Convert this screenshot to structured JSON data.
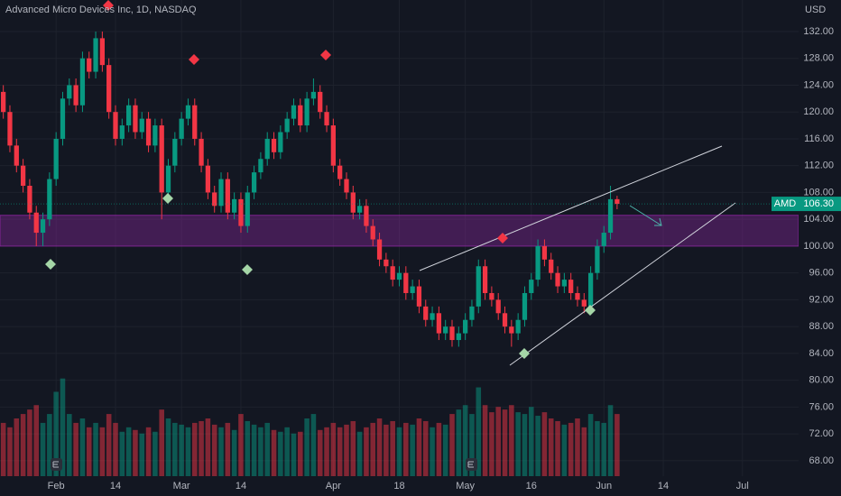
{
  "chart_data": {
    "type": "candlestick",
    "title": "Advanced Micro Devices Inc, 1D, NASDAQ",
    "currency": "USD",
    "symbol": "AMD",
    "last_price": {
      "value": 106.3,
      "label": "106.30"
    },
    "up_color": "#089981",
    "down_color": "#f23645",
    "zone": [
      100,
      104.6
    ],
    "zone_color": "#9c27b0",
    "grid": true,
    "ylim": [
      65.7,
      136.7
    ],
    "yticks": [
      {
        "value": 68,
        "label": "68.00"
      },
      {
        "value": 72,
        "label": "72.00"
      },
      {
        "value": 76,
        "label": "76.00"
      },
      {
        "value": 80,
        "label": "80.00"
      },
      {
        "value": 84,
        "label": "84.00"
      },
      {
        "value": 88,
        "label": "88.00"
      },
      {
        "value": 92,
        "label": "92.00"
      },
      {
        "value": 96,
        "label": "96.00"
      },
      {
        "value": 100,
        "label": "100.00"
      },
      {
        "value": 104,
        "label": "104.00"
      },
      {
        "value": 108,
        "label": "108.00"
      },
      {
        "value": 112,
        "label": "112.00"
      },
      {
        "value": 116,
        "label": "116.00"
      },
      {
        "value": 120,
        "label": "120.00"
      },
      {
        "value": 124,
        "label": "124.00"
      },
      {
        "value": 128,
        "label": "128.00"
      },
      {
        "value": 132,
        "label": "132.00"
      }
    ],
    "xlim": [
      -0.5,
      120.5
    ],
    "xticks": [
      {
        "value": 8,
        "label": "Feb"
      },
      {
        "value": 17,
        "label": "14"
      },
      {
        "value": 27,
        "label": "Mar"
      },
      {
        "value": 36,
        "label": "14"
      },
      {
        "value": 50,
        "label": "Apr"
      },
      {
        "value": 60,
        "label": "18"
      },
      {
        "value": 70,
        "label": "May"
      },
      {
        "value": 80,
        "label": "16"
      },
      {
        "value": 91,
        "label": "Jun"
      },
      {
        "value": 100,
        "label": "14"
      },
      {
        "value": 112,
        "label": "Jul"
      }
    ],
    "ohlc": [
      [
        123,
        124,
        119,
        120
      ],
      [
        120,
        121,
        114,
        115
      ],
      [
        115,
        116,
        111,
        112
      ],
      [
        112,
        113,
        108,
        109
      ],
      [
        109,
        110,
        104,
        105
      ],
      [
        105,
        106,
        100,
        102
      ],
      [
        102,
        105,
        100,
        104
      ],
      [
        104,
        111,
        103,
        110
      ],
      [
        110,
        117,
        109,
        116
      ],
      [
        116,
        123,
        115,
        122
      ],
      [
        122,
        125,
        121,
        124
      ],
      [
        124,
        125,
        120,
        121
      ],
      [
        121,
        129,
        120,
        128
      ],
      [
        128,
        129,
        125,
        126
      ],
      [
        126,
        132,
        125,
        131
      ],
      [
        131,
        132,
        126,
        127
      ],
      [
        127,
        128,
        119,
        120
      ],
      [
        120,
        121,
        115,
        116
      ],
      [
        116,
        119,
        115,
        118
      ],
      [
        118,
        122,
        117,
        121
      ],
      [
        121,
        122,
        116,
        117
      ],
      [
        117,
        120,
        116,
        119
      ],
      [
        119,
        120,
        114,
        115
      ],
      [
        115,
        119,
        114,
        118
      ],
      [
        118,
        119,
        104,
        108
      ],
      [
        108,
        113,
        107,
        112
      ],
      [
        112,
        117,
        111,
        116
      ],
      [
        116,
        120,
        115,
        119
      ],
      [
        119,
        122,
        118,
        121
      ],
      [
        121,
        122,
        115,
        116
      ],
      [
        116,
        117,
        111,
        112
      ],
      [
        112,
        113,
        107,
        108
      ],
      [
        108,
        109,
        105,
        106
      ],
      [
        106,
        111,
        105,
        110
      ],
      [
        110,
        111,
        104,
        105
      ],
      [
        105,
        108,
        104,
        107
      ],
      [
        107,
        108,
        102,
        103
      ],
      [
        103,
        109,
        102,
        108
      ],
      [
        108,
        112,
        107,
        111
      ],
      [
        111,
        114,
        110,
        113
      ],
      [
        113,
        117,
        112,
        116
      ],
      [
        116,
        117,
        113,
        114
      ],
      [
        114,
        118,
        113,
        117
      ],
      [
        117,
        120,
        116,
        119
      ],
      [
        119,
        122,
        118,
        121
      ],
      [
        121,
        122,
        117,
        118
      ],
      [
        118,
        123,
        117,
        122
      ],
      [
        122,
        125,
        121,
        123
      ],
      [
        123,
        124,
        119,
        120
      ],
      [
        120,
        121,
        117,
        118
      ],
      [
        118,
        119,
        111,
        112
      ],
      [
        112,
        113,
        109,
        110
      ],
      [
        110,
        111,
        107,
        108
      ],
      [
        108,
        109,
        104,
        105
      ],
      [
        105,
        107,
        104,
        106
      ],
      [
        106,
        107,
        102,
        103
      ],
      [
        103,
        104,
        100,
        101
      ],
      [
        101,
        102,
        97,
        98
      ],
      [
        98,
        99,
        96,
        97
      ],
      [
        97,
        98,
        94,
        95
      ],
      [
        95,
        97,
        94,
        96
      ],
      [
        96,
        97,
        92,
        93
      ],
      [
        93,
        95,
        92,
        94
      ],
      [
        94,
        95,
        90,
        91
      ],
      [
        91,
        92,
        88,
        89
      ],
      [
        89,
        91,
        88,
        90
      ],
      [
        90,
        91,
        86,
        87
      ],
      [
        87,
        89,
        86,
        88
      ],
      [
        88,
        89,
        85,
        86
      ],
      [
        86,
        88,
        85,
        87
      ],
      [
        87,
        90,
        86,
        89
      ],
      [
        89,
        92,
        88,
        91
      ],
      [
        91,
        98,
        90,
        97
      ],
      [
        97,
        98,
        92,
        93
      ],
      [
        93,
        94,
        91,
        92
      ],
      [
        92,
        93,
        89,
        90
      ],
      [
        90,
        91,
        87,
        88
      ],
      [
        88,
        89,
        85,
        87
      ],
      [
        87,
        90,
        86,
        89
      ],
      [
        89,
        94,
        88,
        93
      ],
      [
        93,
        96,
        92,
        95
      ],
      [
        95,
        101,
        94,
        100
      ],
      [
        100,
        101,
        97,
        98
      ],
      [
        98,
        99,
        95,
        96
      ],
      [
        96,
        97,
        93,
        94
      ],
      [
        94,
        96,
        93,
        95
      ],
      [
        95,
        96,
        92,
        93
      ],
      [
        93,
        94,
        91,
        92
      ],
      [
        92,
        93,
        90,
        91
      ],
      [
        91,
        97,
        90,
        96
      ],
      [
        96,
        101,
        95,
        100
      ],
      [
        100,
        103,
        99,
        102
      ],
      [
        102,
        109,
        101,
        107
      ],
      [
        107,
        107.5,
        105.5,
        106.3
      ]
    ],
    "volume_lim": [
      0,
      130
    ],
    "volumes": [
      60,
      55,
      65,
      70,
      75,
      80,
      60,
      70,
      95,
      110,
      70,
      60,
      65,
      55,
      60,
      55,
      70,
      60,
      50,
      55,
      52,
      48,
      55,
      50,
      75,
      65,
      60,
      58,
      55,
      60,
      62,
      65,
      58,
      55,
      60,
      52,
      70,
      62,
      58,
      55,
      60,
      52,
      50,
      55,
      48,
      50,
      65,
      70,
      52,
      55,
      60,
      55,
      58,
      62,
      50,
      55,
      60,
      65,
      58,
      62,
      55,
      60,
      58,
      65,
      62,
      55,
      60,
      58,
      70,
      75,
      80,
      70,
      100,
      80,
      72,
      78,
      75,
      80,
      72,
      70,
      78,
      68,
      72,
      65,
      62,
      58,
      60,
      65,
      55,
      70,
      62,
      60,
      80,
      70
    ]
  }
}
